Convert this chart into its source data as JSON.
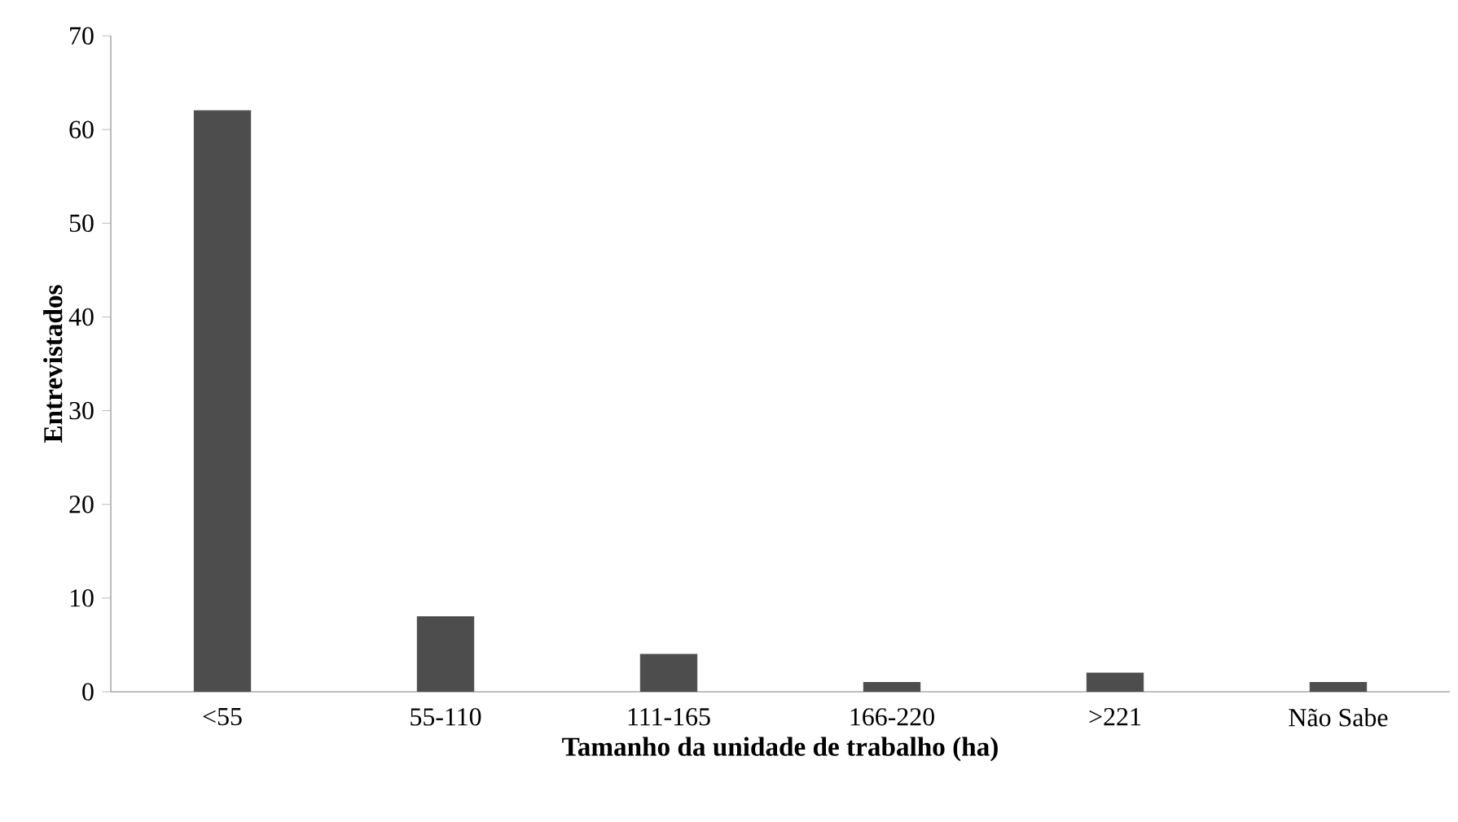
{
  "chart_data": {
    "type": "bar",
    "xlabel": "Tamanho da unidade de trabalho (ha)",
    "ylabel": "Entrevistados",
    "categories": [
      "<55",
      "55-110",
      "111-165",
      "166-220",
      ">221",
      "Não Sabe"
    ],
    "values": [
      62,
      8,
      4,
      1,
      2,
      1
    ],
    "color": "#4d4d4d",
    "ylim": [
      0,
      70
    ],
    "yticks": [
      0,
      10,
      20,
      30,
      40,
      50,
      60,
      70
    ]
  }
}
